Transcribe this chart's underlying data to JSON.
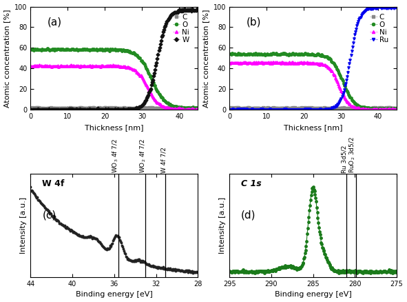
{
  "fig_width": 5.91,
  "fig_height": 4.38,
  "dpi": 100,
  "panel_a": {
    "label": "(a)",
    "xlabel": "Thickness [nm]",
    "ylabel": "Atomic concentration [%]",
    "xlim": [
      0,
      45
    ],
    "ylim": [
      0,
      100
    ],
    "xticks": [
      0,
      10,
      20,
      30,
      40
    ],
    "yticks": [
      0,
      20,
      40,
      60,
      80,
      100
    ],
    "legend_entries": [
      "C",
      "O",
      "Ni",
      "W"
    ],
    "legend_colors": [
      "#888888",
      "#228B22",
      "#FF00FF",
      "#111111"
    ],
    "legend_markers": [
      "s",
      "o",
      "^",
      "D"
    ]
  },
  "panel_b": {
    "label": "(b)",
    "xlabel": "Thickness [nm]",
    "ylabel": "Atomic concentration [%]",
    "xlim": [
      0,
      45
    ],
    "ylim": [
      0,
      100
    ],
    "xticks": [
      0,
      10,
      20,
      30,
      40
    ],
    "yticks": [
      0,
      20,
      40,
      60,
      80,
      100
    ],
    "legend_entries": [
      "C",
      "O",
      "Ni",
      "Ru"
    ],
    "legend_colors": [
      "#888888",
      "#228B22",
      "#FF00FF",
      "#0000EE"
    ],
    "legend_markers": [
      "s",
      "o",
      "^",
      "v"
    ]
  },
  "panel_c": {
    "label": "(c)",
    "title": "W 4f",
    "xlabel": "Binding energy [eV]",
    "ylabel": "Intensity [a.u.]",
    "xlim": [
      44,
      28
    ],
    "xticks": [
      44,
      40,
      36,
      32,
      28
    ],
    "vlines": [
      35.6,
      33.0,
      31.1
    ],
    "vline_labels": [
      "WO$_3$ 4f 7/2",
      "WO$_2$ 4f 7/2",
      "W 4f 7/2"
    ]
  },
  "panel_d": {
    "label": "(d)",
    "title": "C 1s",
    "xlabel": "Binding energy [eV]",
    "ylabel": "Intensity [a.u.]",
    "xlim": [
      295,
      275
    ],
    "xticks": [
      295,
      290,
      285,
      280,
      275
    ],
    "vlines": [
      281.0,
      279.9
    ],
    "vline_labels": [
      "Ru 3d5/2",
      "RuO$_2$ 3d5/2"
    ]
  }
}
